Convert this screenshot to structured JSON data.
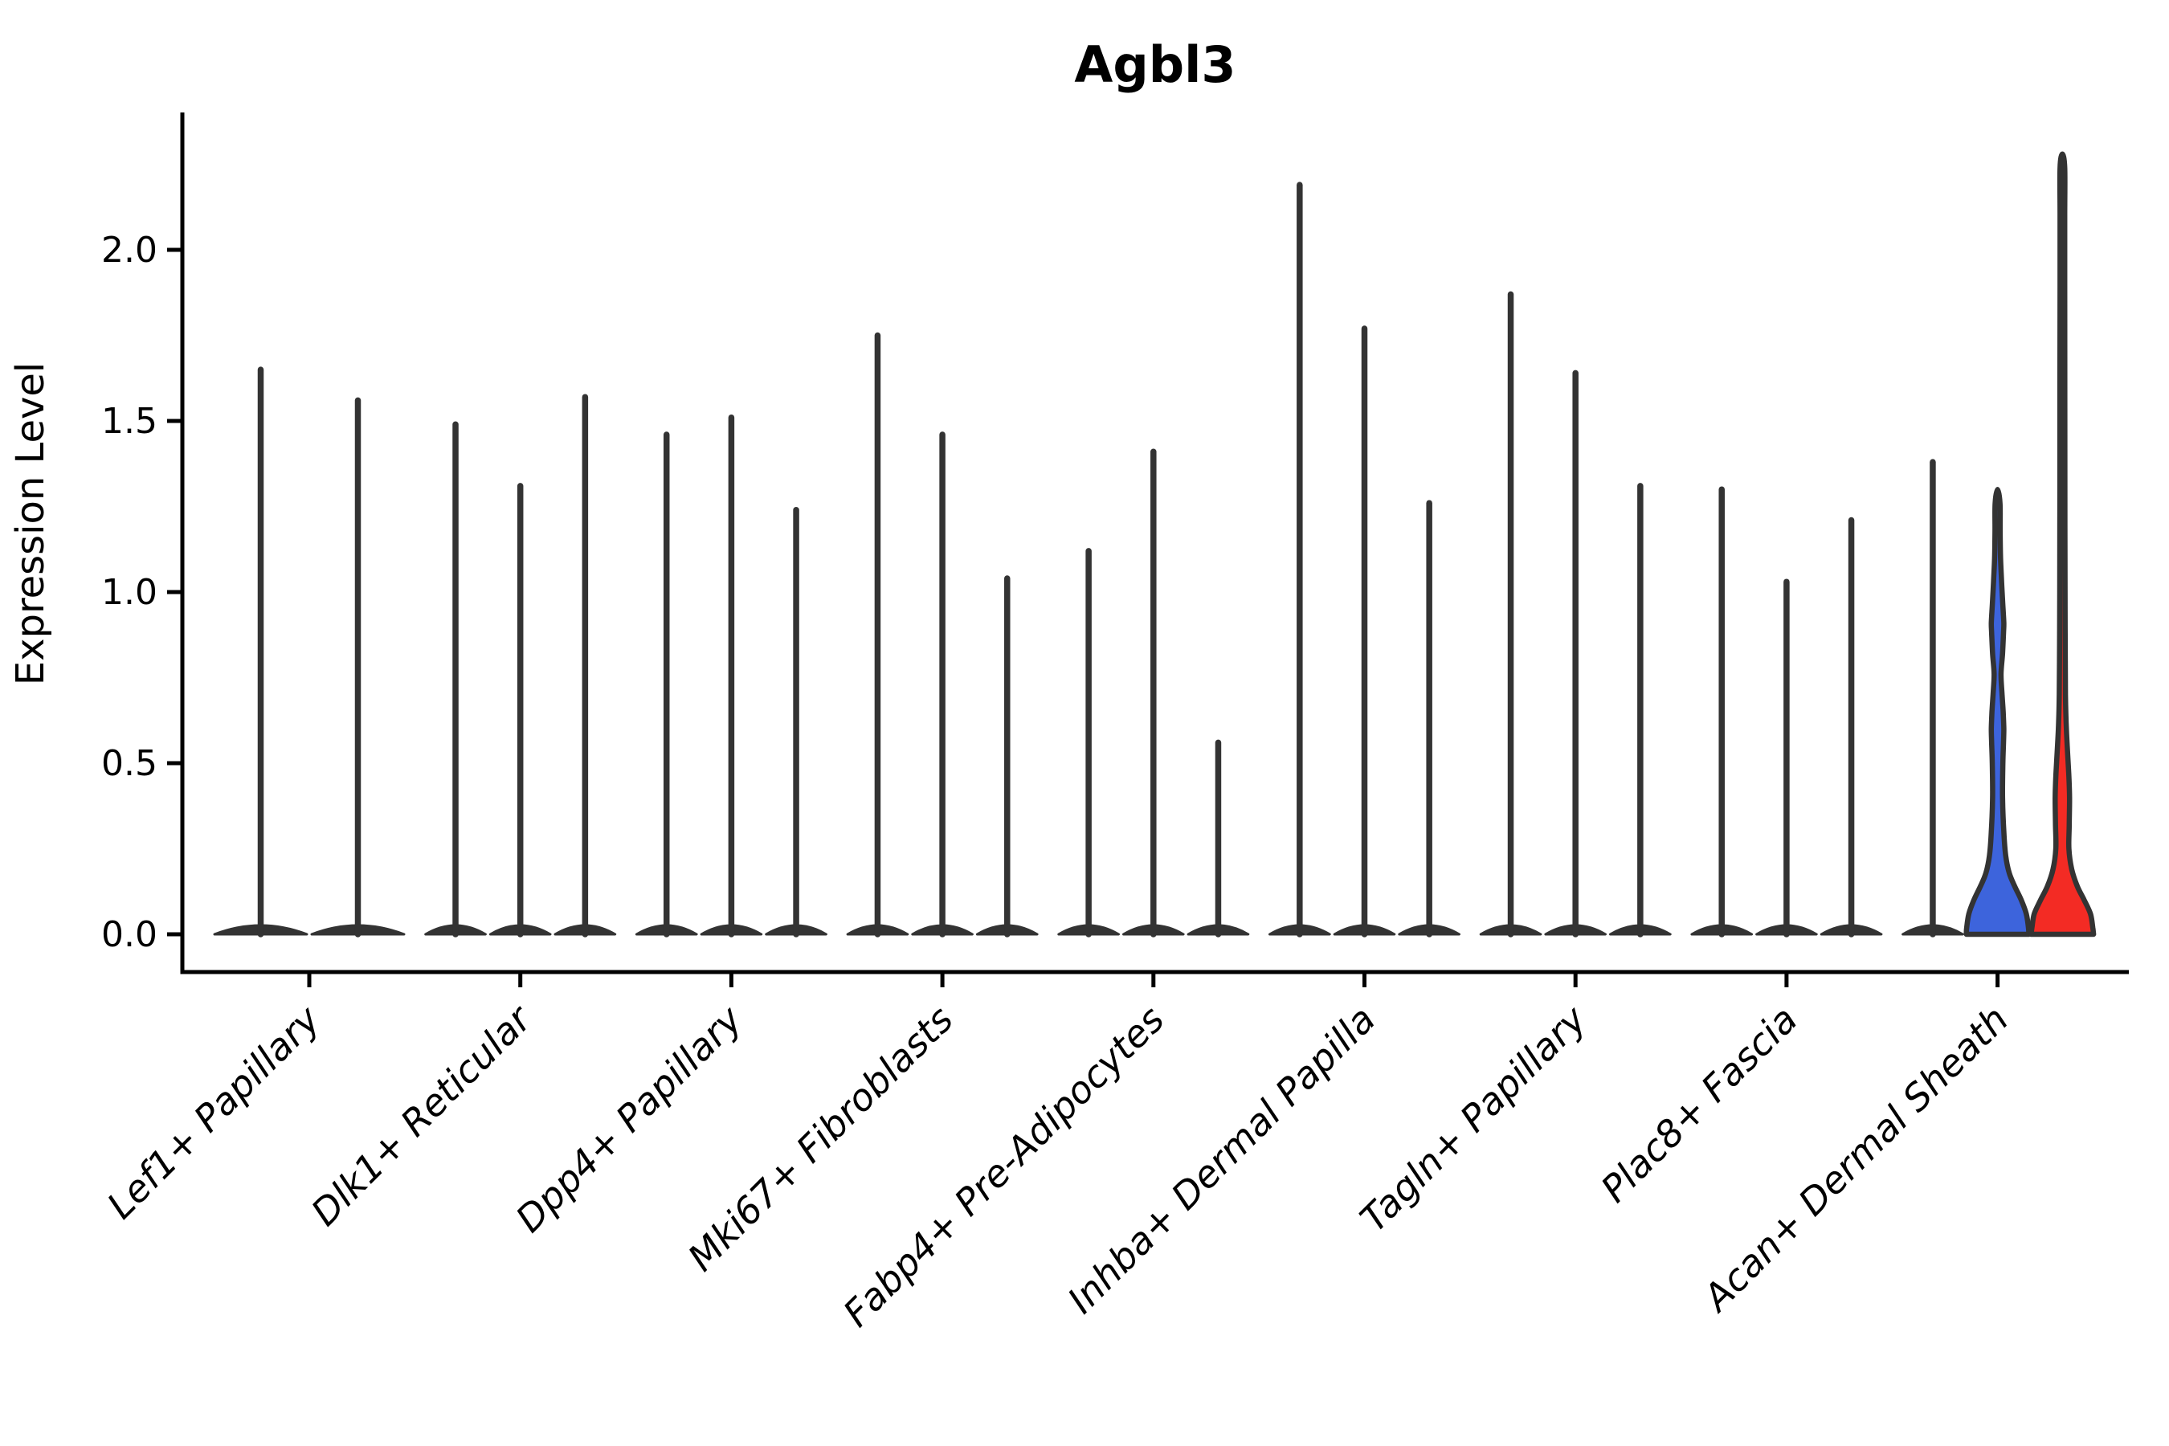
{
  "page": {
    "background": "#ffffff"
  },
  "chart_data": {
    "type": "violin",
    "title": "Agbl3",
    "ylabel": "Expression Level",
    "xlabel": "",
    "grid": false,
    "legend_position": "none",
    "ylim": [
      -0.11,
      2.4
    ],
    "yticks": [
      {
        "value": 0.0,
        "label": "0.0"
      },
      {
        "value": 0.5,
        "label": "0.5"
      },
      {
        "value": 1.0,
        "label": "1.0"
      },
      {
        "value": 1.5,
        "label": "1.5"
      },
      {
        "value": 2.0,
        "label": "2.0"
      }
    ],
    "colors": {
      "violin_stroke": "#333333",
      "blue_fill": "#3D64DC",
      "red_fill": "#F32B24",
      "axis": "#000000",
      "text": "#000000"
    },
    "categories": [
      "Lef1+ Papillary",
      "Dlk1+ Reticular",
      "Dpp4+ Papillary",
      "Mki67+ Fibroblasts",
      "Fabp4+ Pre-Adipocytes",
      "Inhba+ Dermal Papilla",
      "Tagln+ Papillary",
      "Plac8+ Fascia",
      "Acan+ Dermal Sheath"
    ],
    "groups": [
      {
        "category": "Lef1+ Papillary",
        "violins": [
          {
            "max": 1.65,
            "fill": "none"
          },
          {
            "max": 1.56,
            "fill": "none"
          }
        ]
      },
      {
        "category": "Dlk1+ Reticular",
        "violins": [
          {
            "max": 1.49,
            "fill": "none"
          },
          {
            "max": 1.31,
            "fill": "none"
          },
          {
            "max": 1.57,
            "fill": "none"
          }
        ]
      },
      {
        "category": "Dpp4+ Papillary",
        "violins": [
          {
            "max": 1.46,
            "fill": "none"
          },
          {
            "max": 1.51,
            "fill": "none"
          },
          {
            "max": 1.24,
            "fill": "none"
          }
        ]
      },
      {
        "category": "Mki67+ Fibroblasts",
        "violins": [
          {
            "max": 1.75,
            "fill": "none"
          },
          {
            "max": 1.46,
            "fill": "none"
          },
          {
            "max": 1.04,
            "fill": "none"
          }
        ]
      },
      {
        "category": "Fabp4+ Pre-Adipocytes",
        "violins": [
          {
            "max": 1.12,
            "fill": "none"
          },
          {
            "max": 1.41,
            "fill": "none"
          },
          {
            "max": 0.56,
            "fill": "none"
          }
        ]
      },
      {
        "category": "Inhba+ Dermal Papilla",
        "violins": [
          {
            "max": 2.19,
            "fill": "none"
          },
          {
            "max": 1.77,
            "fill": "none"
          },
          {
            "max": 1.26,
            "fill": "none"
          }
        ]
      },
      {
        "category": "Tagln+ Papillary",
        "violins": [
          {
            "max": 1.87,
            "fill": "none"
          },
          {
            "max": 1.64,
            "fill": "none"
          },
          {
            "max": 1.31,
            "fill": "none"
          }
        ]
      },
      {
        "category": "Plac8+ Fascia",
        "violins": [
          {
            "max": 1.3,
            "fill": "none"
          },
          {
            "max": 1.03,
            "fill": "none"
          },
          {
            "max": 1.21,
            "fill": "none"
          }
        ]
      },
      {
        "category": "Acan+ Dermal Sheath",
        "violins": [
          {
            "max": 1.38,
            "fill": "none"
          },
          {
            "max": 1.3,
            "fill": "blue",
            "body": [
              [
                0,
                1.0
              ],
              [
                0.02,
                0.99
              ],
              [
                0.06,
                0.92
              ],
              [
                0.1,
                0.76
              ],
              [
                0.14,
                0.55
              ],
              [
                0.18,
                0.37
              ],
              [
                0.23,
                0.26
              ],
              [
                0.3,
                0.2
              ],
              [
                0.4,
                0.16
              ],
              [
                0.5,
                0.17
              ],
              [
                0.56,
                0.19
              ],
              [
                0.6,
                0.2
              ],
              [
                0.65,
                0.18
              ],
              [
                0.7,
                0.145
              ],
              [
                0.76,
                0.11
              ],
              [
                0.82,
                0.16
              ],
              [
                0.88,
                0.19
              ],
              [
                0.91,
                0.2
              ],
              [
                0.96,
                0.17
              ],
              [
                1.03,
                0.13
              ],
              [
                1.1,
                0.095
              ],
              [
                1.18,
                0.082
              ],
              [
                1.26,
                0.078
              ]
            ]
          },
          {
            "max": 2.28,
            "fill": "red",
            "body": [
              [
                0,
                1.0
              ],
              [
                0.02,
                0.975
              ],
              [
                0.06,
                0.9
              ],
              [
                0.1,
                0.7
              ],
              [
                0.14,
                0.48
              ],
              [
                0.19,
                0.3
              ],
              [
                0.25,
                0.21
              ],
              [
                0.32,
                0.22
              ],
              [
                0.4,
                0.23
              ],
              [
                0.47,
                0.205
              ],
              [
                0.55,
                0.155
              ],
              [
                0.62,
                0.12
              ],
              [
                0.7,
                0.1
              ],
              [
                0.85,
                0.09
              ],
              [
                1.0,
                0.085
              ],
              [
                1.3,
                0.08
              ],
              [
                1.6,
                0.078
              ],
              [
                1.9,
                0.075
              ],
              [
                2.1,
                0.075
              ],
              [
                2.24,
                0.075
              ]
            ]
          }
        ]
      }
    ]
  }
}
